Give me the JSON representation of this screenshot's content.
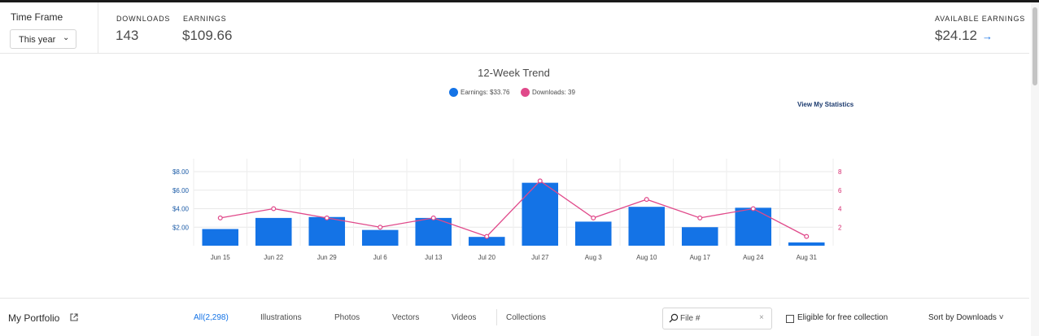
{
  "stats": {
    "time_frame_label": "Time Frame",
    "time_frame_value": "This year",
    "downloads_label": "DOWNLOADS",
    "downloads_value": "143",
    "earnings_label": "EARNINGS",
    "earnings_value": "$109.66",
    "available_label": "AVAILABLE EARNINGS",
    "available_value": "$24.12",
    "available_arrow": "→"
  },
  "trend": {
    "title": "12-Week Trend",
    "legend_earnings": "Earnings: $33.76",
    "legend_downloads": "Downloads: 39",
    "view_link": "View My Statistics"
  },
  "colors": {
    "earnings": "#1473e6",
    "downloads": "#e0498a",
    "left_axis": "#1a5aa6",
    "right_axis": "#d6286e"
  },
  "chart_data": {
    "type": "bar",
    "title": "12-Week Trend",
    "categories": [
      "Jun 15",
      "Jun 22",
      "Jun 29",
      "Jul 6",
      "Jul 13",
      "Jul 20",
      "Jul 27",
      "Aug 3",
      "Aug 10",
      "Aug 17",
      "Aug 24",
      "Aug 31"
    ],
    "series": [
      {
        "name": "Earnings",
        "type": "bar",
        "axis": "left",
        "values": [
          1.8,
          3.0,
          3.1,
          1.7,
          3.0,
          0.95,
          6.8,
          2.6,
          4.2,
          2.0,
          4.1,
          0.35
        ]
      },
      {
        "name": "Downloads",
        "type": "line",
        "axis": "right",
        "values": [
          3,
          4,
          3,
          2,
          3,
          1,
          7,
          3,
          5,
          3,
          4,
          1
        ]
      }
    ],
    "ylim_left": [
      0,
      8
    ],
    "yticks_left": [
      "$2.00",
      "$4.00",
      "$6.00",
      "$8.00"
    ],
    "ylim_right": [
      0,
      8
    ],
    "yticks_right": [
      "2",
      "4",
      "6",
      "8"
    ],
    "grid": true
  },
  "portfolio": {
    "title": "My Portfolio",
    "tabs": [
      {
        "label": "All(2,298)",
        "active": true
      },
      {
        "label": "Illustrations",
        "active": false
      },
      {
        "label": "Photos",
        "active": false
      },
      {
        "label": "Vectors",
        "active": false
      },
      {
        "label": "Videos",
        "active": false
      },
      {
        "label": "Collections",
        "active": false
      }
    ],
    "search_placeholder": "File #",
    "search_clear": "×",
    "eligible_label": "Eligible for free collection",
    "sort_label": "Sort by Downloads ˅"
  }
}
